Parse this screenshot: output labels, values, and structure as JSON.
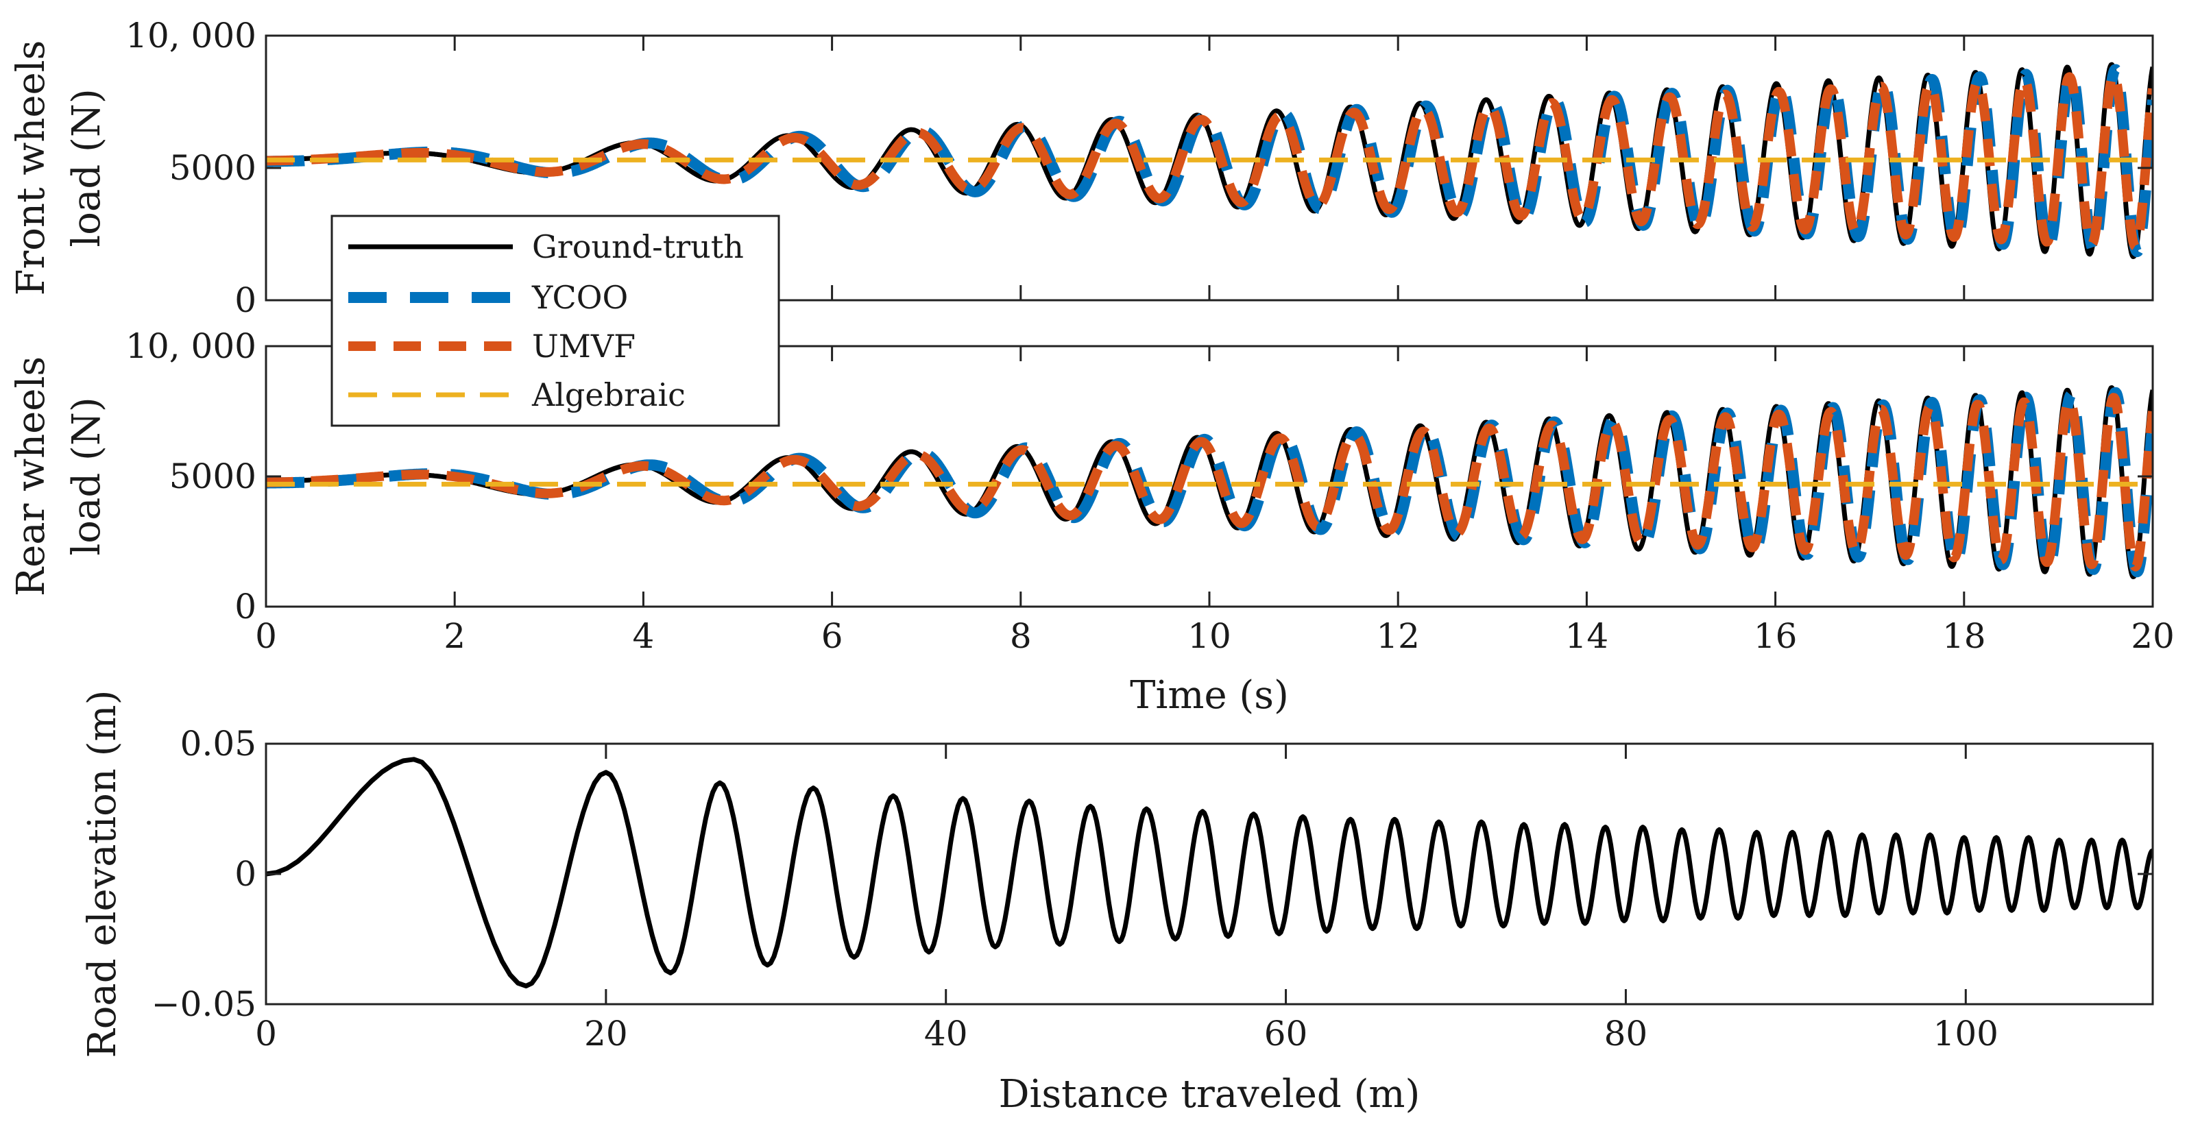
{
  "colors": {
    "ground_truth": "#000000",
    "ycoo": "#0072BD",
    "umvf": "#D95319",
    "algebraic": "#EDB120"
  },
  "chart_data": [
    {
      "type": "line",
      "panel": "front",
      "ylabel_lines": [
        "Front wheels",
        "load (N)"
      ],
      "xlabel": "",
      "xlim": [
        0,
        20
      ],
      "ylim": [
        0,
        10000
      ],
      "xticks": [
        0,
        2,
        4,
        6,
        8,
        10,
        12,
        14,
        16,
        18,
        20
      ],
      "yticks": [
        0,
        5000,
        10000
      ],
      "ytick_labels": [
        "0",
        "5000",
        "10, 000"
      ],
      "show_xtick_labels": false,
      "legend": {
        "placement": "lower-left",
        "entries": [
          "Ground-truth",
          "YCOO",
          "UMVF",
          "Algebraic"
        ]
      },
      "series": [
        {
          "name": "Ground-truth",
          "color_key": "ground_truth",
          "style": "solid",
          "model": "oscillation",
          "baseline": 5300,
          "amplitude_start": 100,
          "amplitude_end": 3700,
          "phase_shift": 0
        },
        {
          "name": "YCOO",
          "color_key": "ycoo",
          "style": "dashed",
          "model": "oscillation",
          "baseline": 5300,
          "amplitude_start": 100,
          "amplitude_end": 3500,
          "phase_shift": 0.55
        },
        {
          "name": "UMVF",
          "color_key": "umvf",
          "style": "dashed",
          "model": "oscillation",
          "baseline": 5300,
          "amplitude_start": 100,
          "amplitude_end": 3300,
          "phase_shift": 0.3
        },
        {
          "name": "Algebraic",
          "color_key": "algebraic",
          "style": "dashed",
          "model": "constant",
          "value": 5300
        }
      ]
    },
    {
      "type": "line",
      "panel": "rear",
      "ylabel_lines": [
        "Rear wheels",
        "load (N)"
      ],
      "xlabel": "Time (s)",
      "xlim": [
        0,
        20
      ],
      "ylim": [
        0,
        10000
      ],
      "xticks": [
        0,
        2,
        4,
        6,
        8,
        10,
        12,
        14,
        16,
        18,
        20
      ],
      "yticks": [
        0,
        5000,
        10000
      ],
      "ytick_labels": [
        "0",
        "5000",
        "10, 000"
      ],
      "show_xtick_labels": true,
      "series": [
        {
          "name": "Ground-truth",
          "color_key": "ground_truth",
          "style": "solid",
          "model": "oscillation",
          "baseline": 4800,
          "amplitude_start": 100,
          "amplitude_end": 3700,
          "phase_shift": 0
        },
        {
          "name": "YCOO",
          "color_key": "ycoo",
          "style": "dashed",
          "model": "oscillation",
          "baseline": 4800,
          "amplitude_start": 100,
          "amplitude_end": 3500,
          "phase_shift": 0.55
        },
        {
          "name": "UMVF",
          "color_key": "umvf",
          "style": "dashed",
          "model": "oscillation",
          "baseline": 4800,
          "amplitude_start": 100,
          "amplitude_end": 3300,
          "phase_shift": 0.3
        },
        {
          "name": "Algebraic",
          "color_key": "algebraic",
          "style": "dashed",
          "model": "constant",
          "value": 4700
        }
      ]
    },
    {
      "type": "line",
      "panel": "road",
      "ylabel_lines": [
        "Road elevation (m)"
      ],
      "xlabel": "Distance traveled (m)",
      "xlim": [
        0,
        111
      ],
      "ylim": [
        -0.05,
        0.05
      ],
      "xticks": [
        0,
        20,
        40,
        60,
        80,
        100
      ],
      "yticks": [
        -0.05,
        0,
        0.05
      ],
      "ytick_labels": [
        "−0.05",
        "0",
        "0.05"
      ],
      "show_xtick_labels": true,
      "series": [
        {
          "color_key": "ground_truth",
          "style": "solid",
          "model": "chirp",
          "peaks": [
            [
              0,
              0
            ],
            [
              8.7,
              0.044
            ],
            [
              15.3,
              -0.043
            ],
            [
              20,
              0.039
            ],
            [
              23.8,
              -0.038
            ],
            [
              26.7,
              0.035
            ],
            [
              29.5,
              -0.035
            ],
            [
              32.2,
              0.033
            ],
            [
              34.6,
              -0.032
            ],
            [
              36.9,
              0.03
            ],
            [
              39,
              -0.03
            ],
            [
              41,
              0.029
            ],
            [
              42.9,
              -0.028
            ],
            [
              44.9,
              0.028
            ],
            [
              46.7,
              -0.027
            ],
            [
              48.5,
              0.026
            ],
            [
              50.2,
              -0.026
            ],
            [
              51.8,
              0.025
            ],
            [
              53.5,
              -0.025
            ],
            [
              55.1,
              0.024
            ],
            [
              56.6,
              -0.024
            ],
            [
              58.1,
              0.023
            ],
            [
              59.6,
              -0.023
            ],
            [
              61,
              0.022
            ],
            [
              62.4,
              -0.022
            ],
            [
              63.8,
              0.021
            ],
            [
              65.1,
              -0.021
            ],
            [
              66.4,
              0.021
            ],
            [
              67.7,
              -0.021
            ],
            [
              69,
              0.02
            ],
            [
              70.3,
              -0.02
            ],
            [
              71.5,
              0.02
            ],
            [
              72.8,
              -0.02
            ],
            [
              74,
              0.019
            ],
            [
              75.2,
              -0.019
            ],
            [
              76.4,
              0.019
            ],
            [
              77.6,
              -0.019
            ],
            [
              78.8,
              0.018
            ],
            [
              79.9,
              -0.018
            ],
            [
              81,
              0.018
            ],
            [
              82.2,
              -0.018
            ],
            [
              83.3,
              0.017
            ],
            [
              84.4,
              -0.017
            ],
            [
              85.5,
              0.017
            ],
            [
              86.6,
              -0.017
            ],
            [
              87.7,
              0.016
            ],
            [
              88.7,
              -0.016
            ],
            [
              89.8,
              0.016
            ],
            [
              90.8,
              -0.016
            ],
            [
              91.9,
              0.016
            ],
            [
              92.9,
              -0.016
            ],
            [
              93.9,
              0.015
            ],
            [
              94.9,
              -0.015
            ],
            [
              95.9,
              0.015
            ],
            [
              96.9,
              -0.015
            ],
            [
              97.9,
              0.015
            ],
            [
              98.9,
              -0.015
            ],
            [
              99.9,
              0.014
            ],
            [
              100.8,
              -0.014
            ],
            [
              101.8,
              0.014
            ],
            [
              102.7,
              -0.014
            ],
            [
              103.7,
              0.014
            ],
            [
              104.6,
              -0.014
            ],
            [
              105.5,
              0.013
            ],
            [
              106.4,
              -0.013
            ],
            [
              107.4,
              0.013
            ],
            [
              108.3,
              -0.013
            ],
            [
              109.2,
              0.013
            ],
            [
              110.1,
              -0.013
            ],
            [
              111,
              0.009
            ]
          ]
        }
      ]
    }
  ]
}
